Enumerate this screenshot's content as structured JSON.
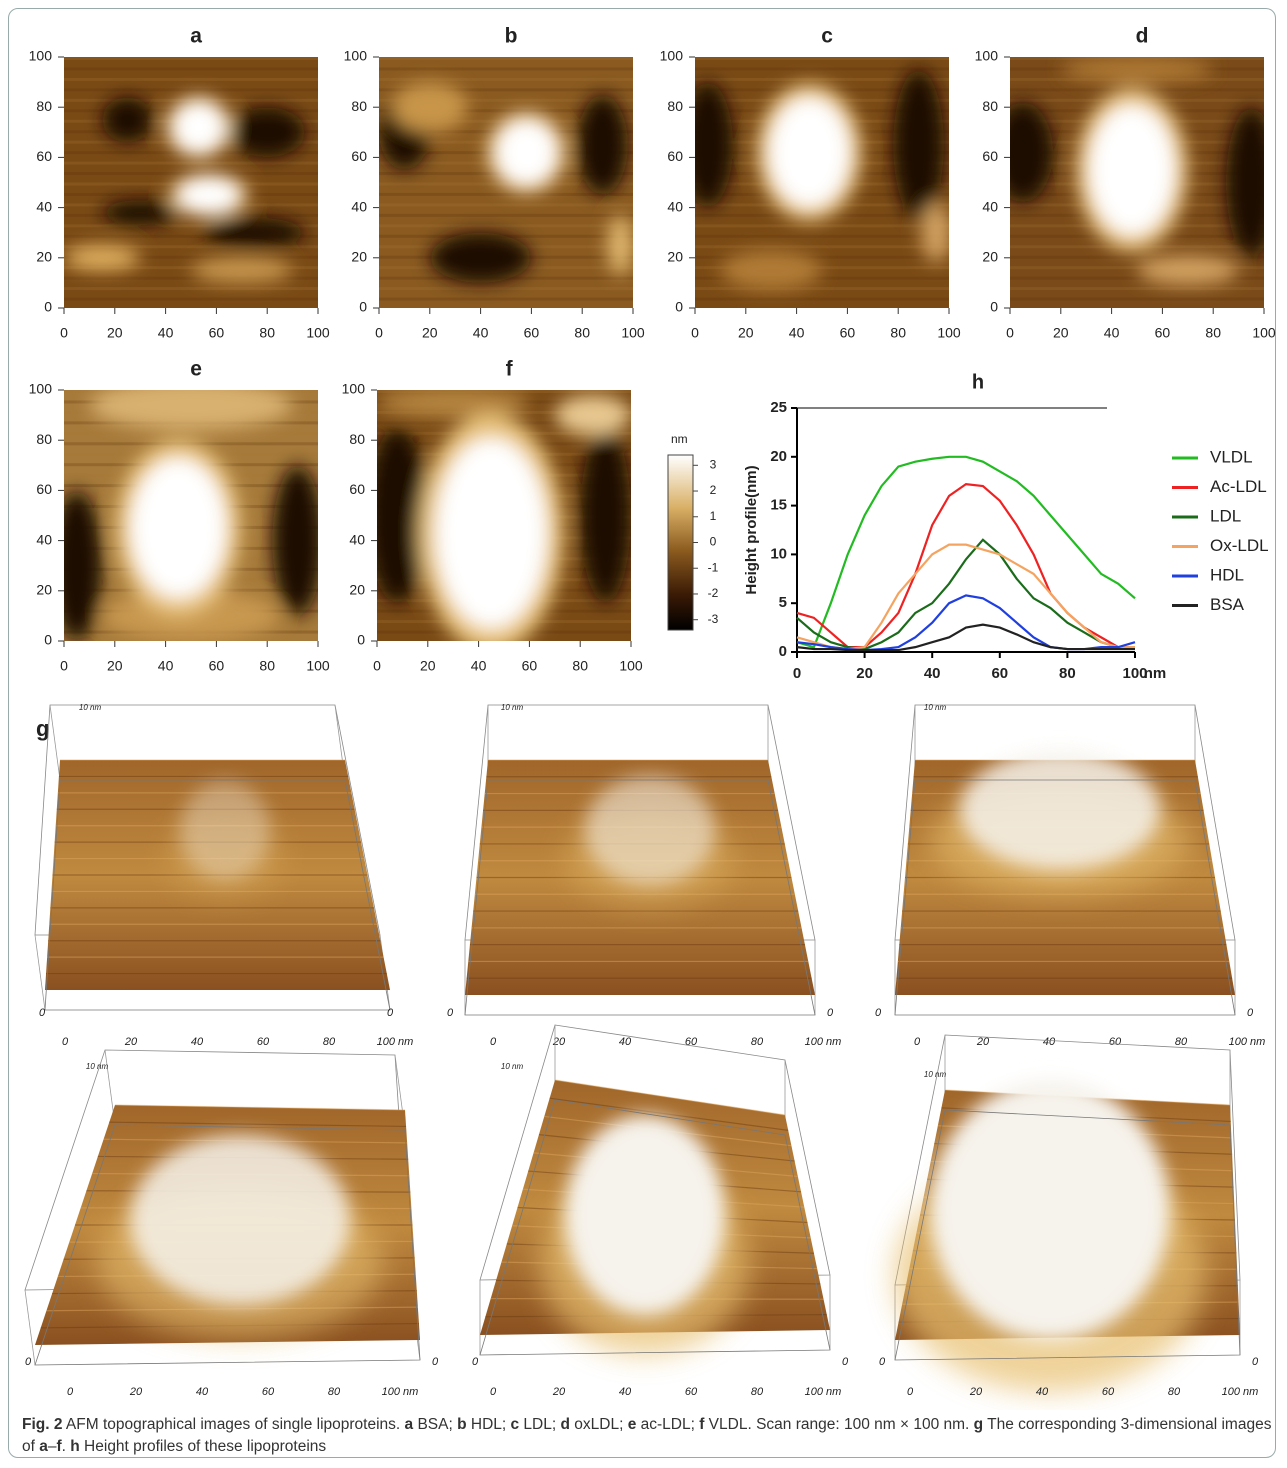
{
  "heatmaps": {
    "ticks": [
      0,
      20,
      40,
      60,
      80,
      100
    ],
    "panels": [
      {
        "label": "a"
      },
      {
        "label": "b"
      },
      {
        "label": "c"
      },
      {
        "label": "d"
      },
      {
        "label": "e"
      },
      {
        "label": "f"
      }
    ]
  },
  "colorbar": {
    "label": "nm",
    "lim": [
      -3.4,
      3.4
    ],
    "ticks": [
      3,
      2,
      1,
      0,
      -1,
      -2,
      -3
    ]
  },
  "chart_data": {
    "type": "line",
    "title": "h",
    "y_label": "Height profile(nm)",
    "x_unit": "nm",
    "x": [
      0,
      5,
      10,
      15,
      20,
      25,
      30,
      35,
      40,
      45,
      50,
      55,
      60,
      65,
      70,
      75,
      80,
      85,
      90,
      95,
      100
    ],
    "xlim": [
      0,
      100
    ],
    "xticks": [
      0,
      20,
      40,
      60,
      80,
      100
    ],
    "ylim": [
      0,
      25
    ],
    "yticks": [
      0,
      5,
      10,
      15,
      20,
      25
    ],
    "series": [
      {
        "name": "VLDL",
        "color": "#22bb22",
        "values": [
          1,
          0.5,
          5,
          10,
          14,
          17,
          19,
          19.5,
          19.8,
          20,
          20,
          19.5,
          18.5,
          17.5,
          16,
          14,
          12,
          10,
          8,
          7,
          5.5
        ]
      },
      {
        "name": "Ac-LDL",
        "color": "#ee2222",
        "values": [
          4,
          3.5,
          2,
          0.5,
          0.5,
          2,
          4,
          8,
          13,
          16,
          17.2,
          17,
          15.5,
          13,
          10,
          6,
          4,
          2.5,
          1.5,
          0.5,
          0.5
        ]
      },
      {
        "name": "LDL",
        "color": "#1a6b1a",
        "values": [
          3.5,
          2,
          1,
          0.5,
          0.3,
          1,
          2,
          4,
          5,
          7,
          9.5,
          11.5,
          10,
          7.5,
          5.5,
          4.5,
          3,
          2,
          1,
          0.5,
          0.5
        ]
      },
      {
        "name": "Ox-LDL",
        "color": "#f4a460",
        "values": [
          1.5,
          1,
          0.5,
          0.3,
          0.5,
          3,
          6,
          8,
          10,
          11,
          11,
          10.5,
          10,
          9,
          8,
          6,
          4,
          2.5,
          1,
          0.5,
          0.5
        ]
      },
      {
        "name": "HDL",
        "color": "#1f3fe0",
        "values": [
          1,
          0.8,
          0.5,
          0.3,
          0.2,
          0.3,
          0.5,
          1.5,
          3,
          5,
          5.8,
          5.5,
          4.5,
          3,
          1.5,
          0.5,
          0.3,
          0.3,
          0.5,
          0.5,
          1
        ]
      },
      {
        "name": "BSA",
        "color": "#222222",
        "values": [
          0.5,
          0.3,
          0.3,
          0.2,
          0.2,
          0.2,
          0.2,
          0.5,
          1,
          1.5,
          2.5,
          2.8,
          2.5,
          1.8,
          1,
          0.5,
          0.3,
          0.3,
          0.3,
          0.3,
          0.3
        ]
      }
    ]
  },
  "surface_3d": {
    "label": "g",
    "z_label": "10 nm",
    "ticks": [
      0,
      20,
      40,
      60,
      80,
      {
        "value": 100,
        "label": "100 nm"
      }
    ]
  },
  "caption": [
    {
      "text": "Fig. 2",
      "bold": true
    },
    {
      "text": "  AFM topographical images of single lipoproteins. "
    },
    {
      "text": "a",
      "bold": true
    },
    {
      "text": " BSA; "
    },
    {
      "text": "b",
      "bold": true
    },
    {
      "text": " HDL; "
    },
    {
      "text": "c",
      "bold": true
    },
    {
      "text": " LDL; "
    },
    {
      "text": "d",
      "bold": true
    },
    {
      "text": " oxLDL; "
    },
    {
      "text": "e",
      "bold": true
    },
    {
      "text": " ac-LDL; "
    },
    {
      "text": "f",
      "bold": true
    },
    {
      "text": " VLDL. Scan range: 100 nm × 100 nm. "
    },
    {
      "text": "g",
      "bold": true
    },
    {
      "text": " The corresponding 3-dimensional images of "
    },
    {
      "text": "a",
      "bold": true
    },
    {
      "text": "–"
    },
    {
      "text": "f",
      "bold": true
    },
    {
      "text": ". "
    },
    {
      "text": "h",
      "bold": true
    },
    {
      "text": " Height profiles of these lipoproteins"
    }
  ]
}
